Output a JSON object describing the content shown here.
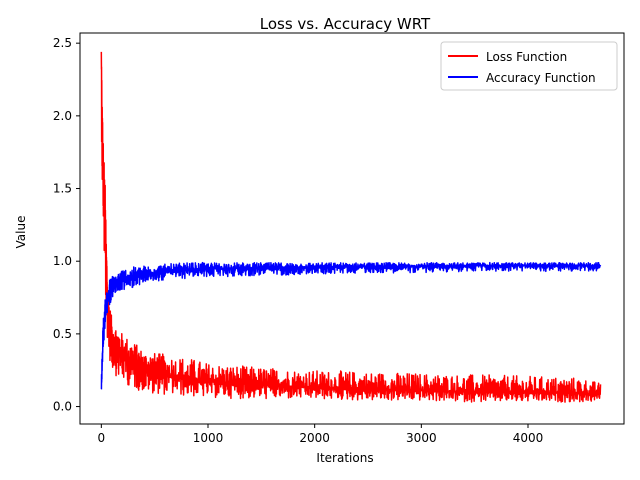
{
  "chart_data": {
    "type": "line",
    "title": "Loss vs. Accuracy WRT",
    "xlabel": "Iterations",
    "ylabel": "Value",
    "xlim": [
      -200,
      4900
    ],
    "ylim": [
      -0.12,
      2.57
    ],
    "xticks": [
      0,
      1000,
      2000,
      3000,
      4000
    ],
    "xtick_labels": [
      "0",
      "1000",
      "2000",
      "3000",
      "4000"
    ],
    "yticks": [
      0.0,
      0.5,
      1.0,
      1.5,
      2.0,
      2.5
    ],
    "ytick_labels": [
      "0.0",
      "0.5",
      "1.0",
      "1.5",
      "2.0",
      "2.5"
    ],
    "grid": false,
    "legend_position": "top-right",
    "series": [
      {
        "name": "Loss Function",
        "color": "#ff0000",
        "x": [
          0,
          10,
          20,
          30,
          40,
          50,
          60,
          80,
          100,
          150,
          200,
          300,
          400,
          600,
          800,
          1000,
          1500,
          2000,
          2500,
          3000,
          3500,
          4000,
          4500,
          4680
        ],
        "y": [
          2.44,
          1.75,
          1.55,
          1.3,
          1.1,
          0.9,
          0.7,
          0.55,
          0.48,
          0.42,
          0.36,
          0.3,
          0.26,
          0.22,
          0.19,
          0.17,
          0.15,
          0.13,
          0.12,
          0.11,
          0.1,
          0.1,
          0.09,
          0.09
        ],
        "band_low": [
          2.0,
          1.4,
          1.2,
          0.9,
          0.7,
          0.55,
          0.4,
          0.3,
          0.25,
          0.2,
          0.17,
          0.12,
          0.1,
          0.08,
          0.07,
          0.06,
          0.05,
          0.05,
          0.04,
          0.04,
          0.03,
          0.03,
          0.03,
          0.03
        ],
        "band_high": [
          2.44,
          2.15,
          1.8,
          1.67,
          1.45,
          1.1,
          0.9,
          0.7,
          0.6,
          0.55,
          0.5,
          0.45,
          0.38,
          0.36,
          0.34,
          0.3,
          0.27,
          0.25,
          0.24,
          0.23,
          0.22,
          0.21,
          0.2,
          0.16
        ]
      },
      {
        "name": "Accuracy Function",
        "color": "#0000ff",
        "x": [
          0,
          10,
          20,
          30,
          40,
          50,
          60,
          80,
          100,
          150,
          200,
          300,
          400,
          600,
          800,
          1000,
          1500,
          2000,
          2500,
          3000,
          3500,
          4000,
          4500,
          4680
        ],
        "y": [
          0.1,
          0.35,
          0.5,
          0.6,
          0.66,
          0.7,
          0.74,
          0.79,
          0.82,
          0.85,
          0.87,
          0.89,
          0.91,
          0.93,
          0.94,
          0.95,
          0.955,
          0.96,
          0.965,
          0.965,
          0.97,
          0.97,
          0.97,
          0.97
        ],
        "band_low": [
          0.06,
          0.25,
          0.4,
          0.5,
          0.56,
          0.6,
          0.64,
          0.7,
          0.74,
          0.78,
          0.8,
          0.82,
          0.85,
          0.87,
          0.88,
          0.89,
          0.9,
          0.91,
          0.92,
          0.92,
          0.93,
          0.93,
          0.93,
          0.93
        ],
        "band_high": [
          0.16,
          0.5,
          0.62,
          0.7,
          0.76,
          0.8,
          0.84,
          0.88,
          0.9,
          0.93,
          0.95,
          0.96,
          0.97,
          0.98,
          0.99,
          0.99,
          0.99,
          0.99,
          0.99,
          0.99,
          0.99,
          0.99,
          0.99,
          0.99
        ]
      }
    ]
  }
}
